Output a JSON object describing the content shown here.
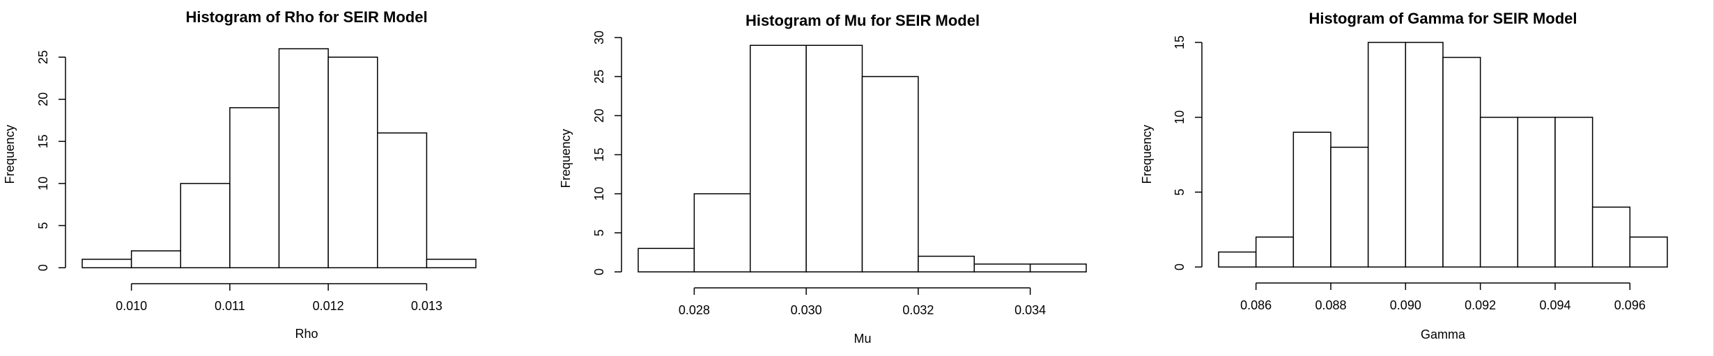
{
  "chart_data": [
    {
      "type": "bar",
      "title": "Histogram of Rho for SEIR Model",
      "xlabel": "Rho",
      "ylabel": "Frequency",
      "bin_edges": [
        0.0095,
        0.01,
        0.0105,
        0.011,
        0.0115,
        0.012,
        0.0125,
        0.013,
        0.0135
      ],
      "values": [
        1,
        2,
        10,
        19,
        26,
        25,
        16,
        1
      ],
      "xticks": [
        0.01,
        0.011,
        0.012,
        0.013
      ],
      "xtick_labels": [
        "0.010",
        "0.011",
        "0.012",
        "0.013"
      ],
      "yticks": [
        0,
        5,
        10,
        15,
        20,
        25
      ],
      "ytick_labels": [
        "0",
        "5",
        "10",
        "15",
        "20",
        "25"
      ],
      "xlim": [
        0.0095,
        0.0135
      ],
      "ylim": [
        0,
        27
      ]
    },
    {
      "type": "bar",
      "title": "Histogram of Mu for SEIR Model",
      "xlabel": "Mu",
      "ylabel": "Frequency",
      "bin_edges": [
        0.027,
        0.028,
        0.029,
        0.03,
        0.031,
        0.032,
        0.033,
        0.034,
        0.035
      ],
      "values": [
        3,
        10,
        29,
        29,
        25,
        2,
        1,
        1
      ],
      "xticks": [
        0.028,
        0.03,
        0.032,
        0.034
      ],
      "xtick_labels": [
        "0.028",
        "0.030",
        "0.032",
        "0.034"
      ],
      "yticks": [
        0,
        5,
        10,
        15,
        20,
        25,
        30
      ],
      "ytick_labels": [
        "0",
        "5",
        "10",
        "15",
        "20",
        "25",
        "30"
      ],
      "xlim": [
        0.027,
        0.035
      ],
      "ylim": [
        0,
        30
      ]
    },
    {
      "type": "bar",
      "title": "Histogram of Gamma for SEIR Model",
      "xlabel": "Gamma",
      "ylabel": "Frequency",
      "bin_edges": [
        0.085,
        0.086,
        0.087,
        0.088,
        0.089,
        0.09,
        0.091,
        0.092,
        0.093,
        0.094,
        0.095,
        0.096,
        0.097
      ],
      "values": [
        1,
        2,
        9,
        8,
        15,
        15,
        14,
        10,
        10,
        10,
        4,
        2
      ],
      "xticks": [
        0.086,
        0.088,
        0.09,
        0.092,
        0.094,
        0.096
      ],
      "xtick_labels": [
        "0.086",
        "0.088",
        "0.090",
        "0.092",
        "0.094",
        "0.096"
      ],
      "yticks": [
        0,
        5,
        10,
        15
      ],
      "ytick_labels": [
        "0",
        "5",
        "10",
        "15"
      ],
      "xlim": [
        0.085,
        0.097
      ],
      "ylim": [
        0,
        15
      ]
    }
  ]
}
